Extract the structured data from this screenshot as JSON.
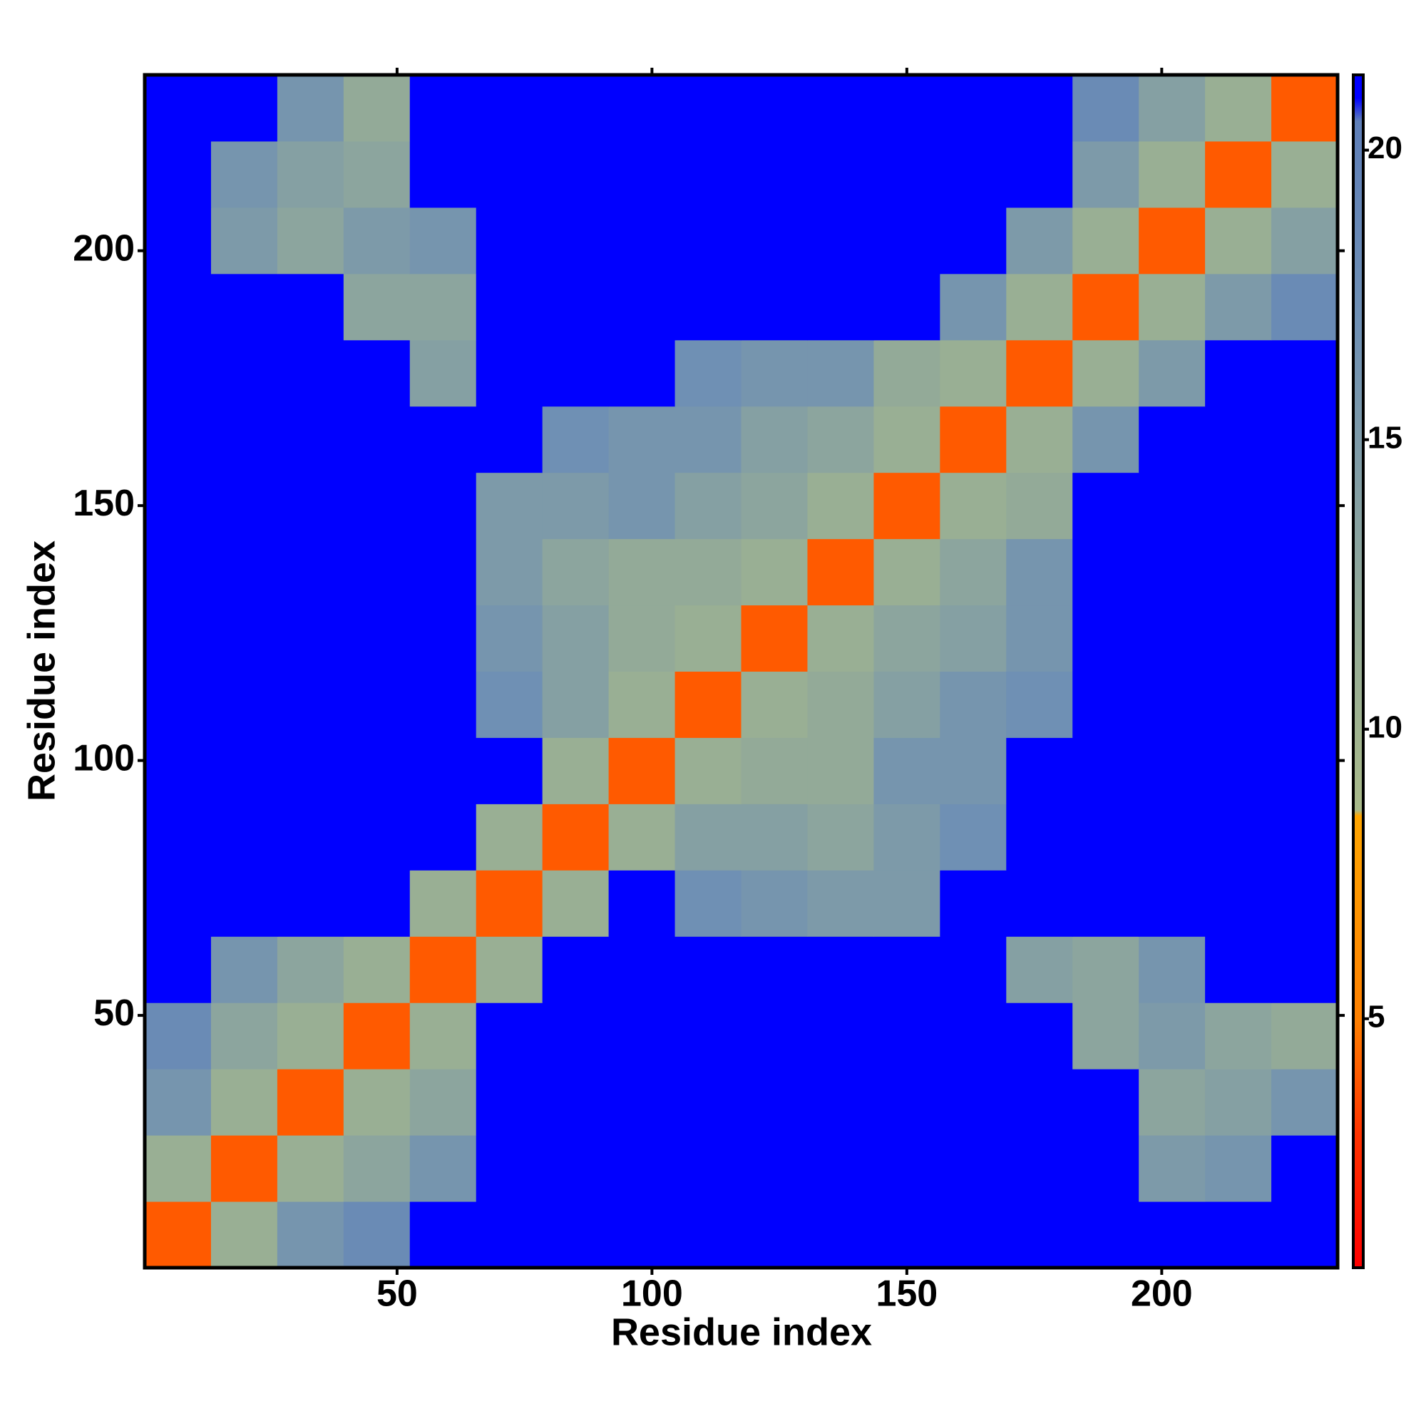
{
  "chart_data": {
    "type": "heatmap",
    "xlabel": "Residue index",
    "ylabel": "Residue index",
    "xbins": [
      0.5,
      13.5,
      26.5,
      39.5,
      52.5,
      65.5,
      78.5,
      91.5,
      104.5,
      117.5,
      130.5,
      143.5,
      156.5,
      169.5,
      182.5,
      195.5,
      208.5,
      221.5,
      234.5
    ],
    "ybins": [
      0.5,
      13.5,
      26.5,
      39.5,
      52.5,
      65.5,
      78.5,
      91.5,
      104.5,
      117.5,
      130.5,
      143.5,
      156.5,
      169.5,
      182.5,
      195.5,
      208.5,
      221.5,
      234.5
    ],
    "values": [
      [
        4,
        11,
        16,
        18,
        21,
        21,
        21,
        21,
        21,
        21,
        21,
        21,
        21,
        21,
        21,
        21,
        21,
        21
      ],
      [
        11,
        4,
        11,
        13,
        16,
        21,
        21,
        21,
        21,
        21,
        21,
        21,
        21,
        21,
        21,
        15,
        16,
        21
      ],
      [
        16,
        11,
        4,
        11,
        13,
        21,
        21,
        21,
        21,
        21,
        21,
        21,
        21,
        21,
        21,
        13,
        14,
        16
      ],
      [
        18,
        13,
        11,
        4,
        11,
        21,
        21,
        21,
        21,
        21,
        21,
        21,
        21,
        21,
        13,
        15,
        13,
        12
      ],
      [
        21,
        16,
        13,
        11,
        4,
        11,
        21,
        21,
        21,
        21,
        21,
        21,
        21,
        14,
        13,
        16,
        21,
        21
      ],
      [
        21,
        21,
        21,
        21,
        11,
        4,
        11,
        21,
        17,
        16,
        15,
        15,
        21,
        21,
        21,
        21,
        21,
        21
      ],
      [
        21,
        21,
        21,
        21,
        21,
        11,
        4,
        11,
        14,
        14,
        13,
        15,
        17,
        21,
        21,
        21,
        21,
        21
      ],
      [
        21,
        21,
        21,
        21,
        21,
        21,
        11,
        4,
        11,
        12,
        12,
        16,
        16,
        21,
        21,
        21,
        21,
        21
      ],
      [
        21,
        21,
        21,
        21,
        21,
        17,
        14,
        11,
        4,
        11,
        12,
        14,
        16,
        17,
        21,
        21,
        21,
        21
      ],
      [
        21,
        21,
        21,
        21,
        21,
        16,
        14,
        12,
        11,
        4,
        11,
        13,
        14,
        16,
        21,
        21,
        21,
        21
      ],
      [
        21,
        21,
        21,
        21,
        21,
        15,
        13,
        12,
        12,
        11,
        4,
        11,
        13,
        16,
        21,
        21,
        21,
        21
      ],
      [
        21,
        21,
        21,
        21,
        21,
        15,
        15,
        16,
        14,
        13,
        11,
        4,
        11,
        12,
        21,
        21,
        21,
        21
      ],
      [
        21,
        21,
        21,
        21,
        21,
        21,
        17,
        16,
        16,
        14,
        13,
        11,
        4,
        11,
        16,
        21,
        21,
        21
      ],
      [
        21,
        21,
        21,
        21,
        14,
        21,
        21,
        21,
        17,
        16,
        16,
        12,
        11,
        4,
        11,
        15,
        21,
        21
      ],
      [
        21,
        21,
        21,
        13,
        13,
        21,
        21,
        21,
        21,
        21,
        21,
        21,
        16,
        11,
        4,
        11,
        15,
        18
      ],
      [
        21,
        15,
        13,
        15,
        16,
        21,
        21,
        21,
        21,
        21,
        21,
        21,
        21,
        15,
        11,
        4,
        11,
        14
      ],
      [
        21,
        16,
        14,
        13,
        21,
        21,
        21,
        21,
        21,
        21,
        21,
        21,
        21,
        21,
        15,
        11,
        4,
        11
      ],
      [
        21,
        21,
        16,
        12,
        21,
        21,
        21,
        21,
        21,
        21,
        21,
        21,
        21,
        21,
        18,
        14,
        11,
        4
      ]
    ],
    "xlim": [
      0.5,
      234.5
    ],
    "ylim": [
      0.5,
      234.5
    ],
    "xticks": [
      50,
      100,
      150,
      200
    ],
    "yticks": [
      50,
      100,
      150,
      200
    ],
    "clim": [
      0.7,
      21.3
    ],
    "cticks": [
      5,
      10,
      15,
      20
    ],
    "colorscale": [
      {
        "value": 0.7,
        "color": "#ff0000"
      },
      {
        "value": 3,
        "color": "#ff3300"
      },
      {
        "value": 5,
        "color": "#ff8000"
      },
      {
        "value": 8.5,
        "color": "#ffa500"
      },
      {
        "value": 8.6,
        "color": "#a9ba8a"
      },
      {
        "value": 12,
        "color": "#93aa98"
      },
      {
        "value": 17,
        "color": "#6f90b4"
      },
      {
        "value": 20.5,
        "color": "#5f7fb8"
      },
      {
        "value": 20.9,
        "color": "#0000ff"
      },
      {
        "value": 21.3,
        "color": "#0000ff"
      }
    ]
  }
}
